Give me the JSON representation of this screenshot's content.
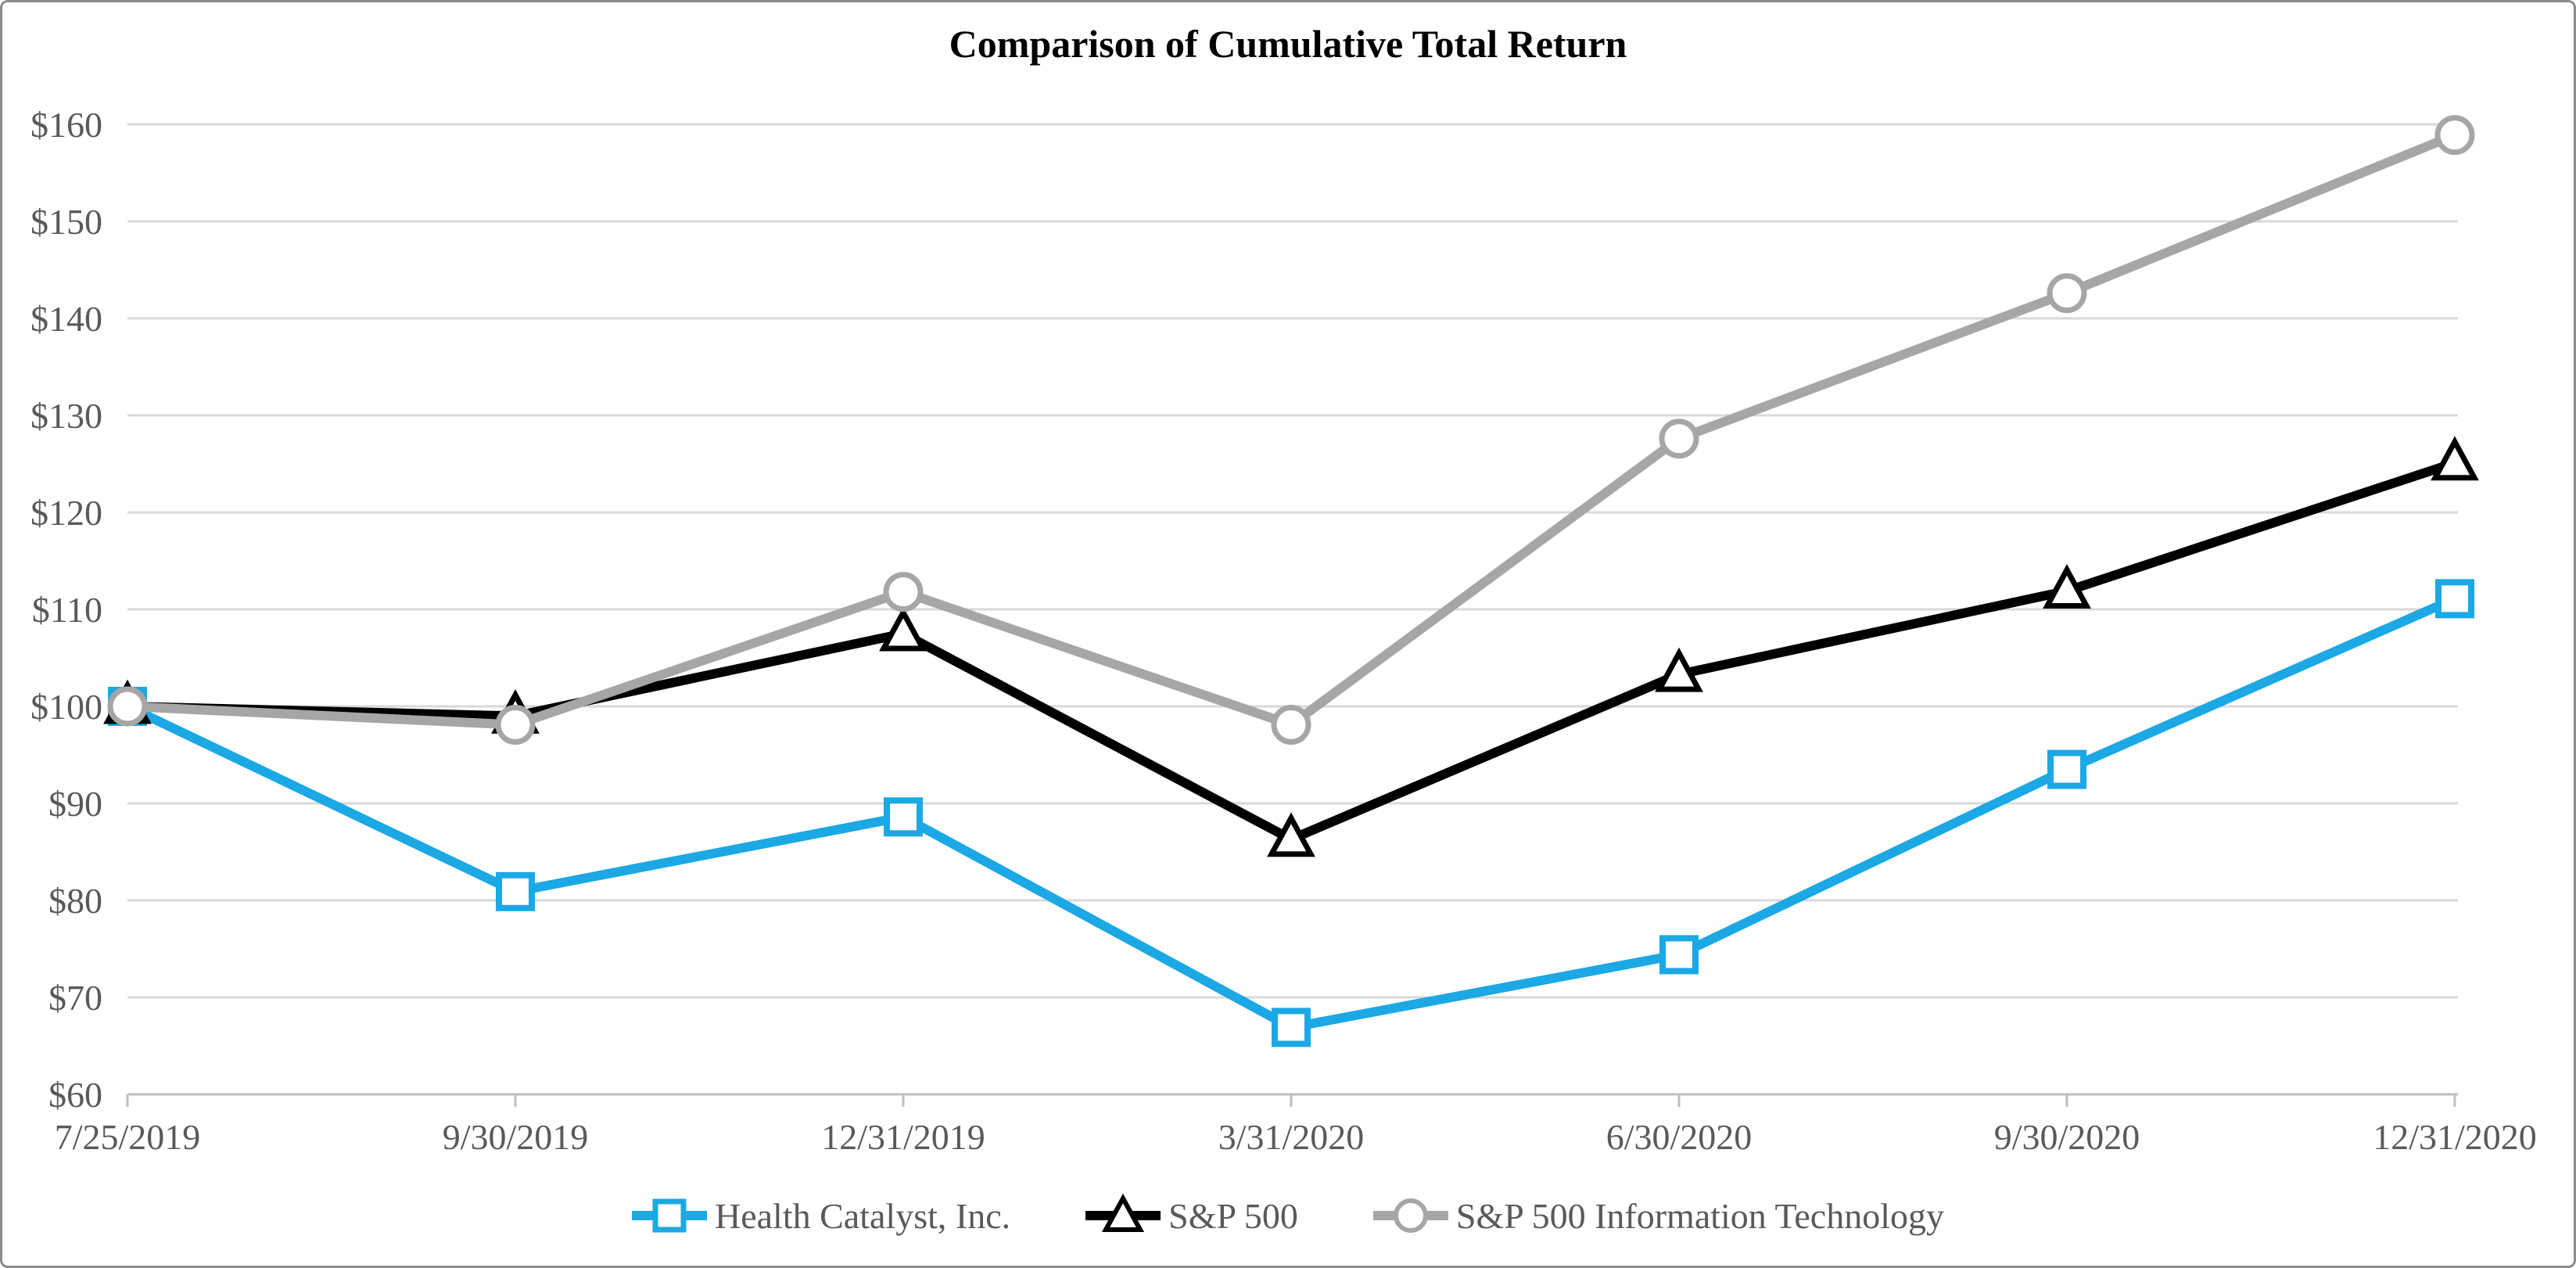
{
  "window": {
    "background_color": "#ffffff",
    "border_color": "#8c8c8c"
  },
  "chart_data": {
    "type": "line",
    "title": "Comparison of Cumulative Total Return",
    "x": [
      "7/25/2019",
      "9/30/2019",
      "12/31/2019",
      "3/31/2020",
      "6/30/2020",
      "9/30/2020",
      "12/31/2020"
    ],
    "xlabel": "",
    "ylabel": "",
    "ylim": [
      60,
      160
    ],
    "grid": true,
    "legend_position": "bottom",
    "grid_color": "#d9d9d9",
    "axis_line_color": "#bfbfbf",
    "label_color": "#595959",
    "y_ticks": [
      {
        "value": 60,
        "label": "$60"
      },
      {
        "value": 70,
        "label": "$70"
      },
      {
        "value": 80,
        "label": "$80"
      },
      {
        "value": 90,
        "label": "$90"
      },
      {
        "value": 100,
        "label": "$100"
      },
      {
        "value": 110,
        "label": "$110"
      },
      {
        "value": 120,
        "label": "$120"
      },
      {
        "value": 130,
        "label": "$130"
      },
      {
        "value": 140,
        "label": "$140"
      },
      {
        "value": 150,
        "label": "$150"
      },
      {
        "value": 160,
        "label": "$160"
      }
    ],
    "series": [
      {
        "name": "Health Catalyst, Inc.",
        "color": "#1ba8e4",
        "marker": "square",
        "values": [
          100,
          80.9,
          88.6,
          66.9,
          74.4,
          93.5,
          111.1
        ]
      },
      {
        "name": "S&P 500",
        "color": "#000000",
        "marker": "triangle",
        "values": [
          100,
          99.0,
          107.5,
          86.3,
          103.3,
          111.9,
          125.1
        ]
      },
      {
        "name": "S&P 500 Information Technology",
        "color": "#a6a6a6",
        "marker": "circle",
        "values": [
          100,
          98.1,
          111.8,
          98.1,
          127.6,
          142.6,
          158.9
        ]
      }
    ]
  }
}
